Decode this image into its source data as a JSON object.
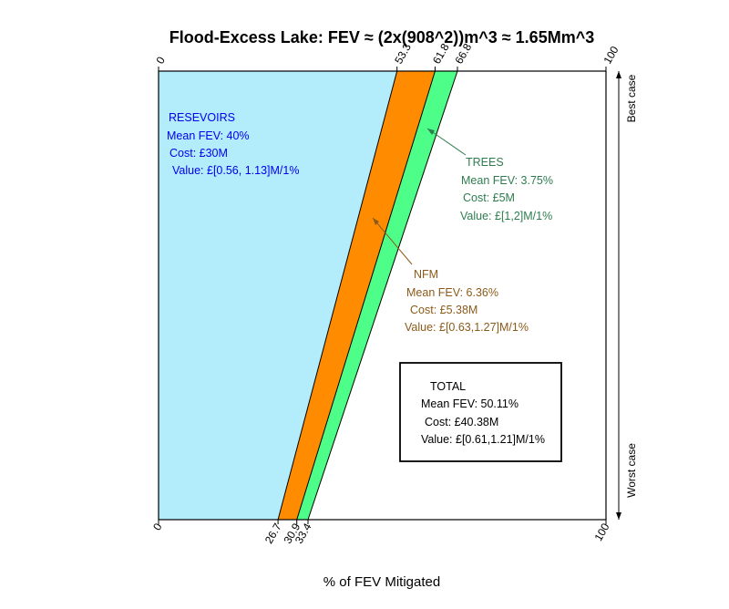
{
  "chart_data": {
    "type": "area",
    "title": "Flood-Excess Lake: FEV ≈ (2x(908^2))m^3 ≈ 1.65Mm^3",
    "xlabel": "% of FEV Mitigated",
    "xlim": [
      0,
      100
    ],
    "right_labels": {
      "top": "Best case",
      "bottom": "Worst case"
    },
    "top_ticks": [
      "0",
      "53.3",
      "61.8",
      "66.8",
      "100"
    ],
    "bottom_ticks": [
      "0",
      "26.7",
      "30.9",
      "33.4",
      "100"
    ],
    "series": [
      {
        "name": "RESEVOIRS",
        "best_case": 53.3,
        "worst_case": 26.7,
        "color": "#b3ecfb"
      },
      {
        "name": "NFM",
        "best_case": 61.8,
        "worst_case": 30.9,
        "color": "#ff8c00"
      },
      {
        "name": "TREES",
        "best_case": 66.8,
        "worst_case": 33.4,
        "color": "#4dff88"
      }
    ],
    "annotations": {
      "reservoirs": {
        "color": "#0000ee",
        "lines": [
          "RESEVOIRS",
          "Mean FEV: 40%",
          "Cost: £30M",
          "Value: £[0.56, 1.13]M/1%"
        ]
      },
      "trees": {
        "color": "#2e7d4f",
        "lines": [
          "TREES",
          "Mean FEV: 3.75%",
          "Cost: £5M",
          "Value: £[1,2]M/1%"
        ]
      },
      "nfm": {
        "color": "#8b5a1a",
        "lines": [
          "NFM",
          "Mean FEV: 6.36%",
          "Cost: £5.38M",
          "Value: £[0.63,1.27]M/1%"
        ]
      },
      "total": {
        "color": "#000000",
        "lines": [
          "TOTAL",
          "Mean FEV: 50.11%",
          "Cost: £40.38M",
          "Value: £[0.61,1.21]M/1%"
        ]
      }
    }
  }
}
